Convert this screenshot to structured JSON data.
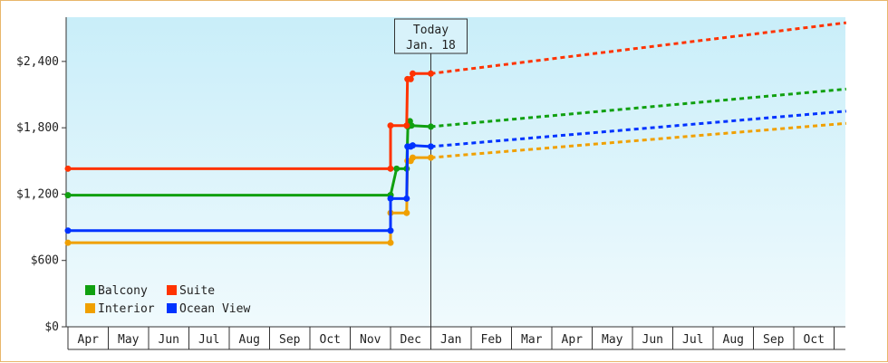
{
  "chart_data": {
    "type": "line",
    "y_ticks": [
      "$0",
      "$600",
      "$1,200",
      "$1,800",
      "$2,400"
    ],
    "ylim": [
      0,
      2800
    ],
    "x_ticks": [
      "Apr",
      "May",
      "Jun",
      "Jul",
      "Aug",
      "Sep",
      "Oct",
      "Nov",
      "Dec",
      "Jan",
      "Feb",
      "Mar",
      "Apr",
      "May",
      "Jun",
      "Jul",
      "Aug",
      "Sep",
      "Oct"
    ],
    "today_marker": {
      "line1": "Today",
      "line2": "Jan. 18"
    },
    "legend_position": "bottom-left",
    "series": [
      {
        "name": "Balcony",
        "color": "#10a010",
        "history": [
          [
            0,
            1190
          ],
          [
            8.0,
            1190
          ],
          [
            8.0,
            1190
          ],
          [
            8.15,
            1430
          ],
          [
            8.4,
            1430
          ],
          [
            8.43,
            1810
          ],
          [
            8.48,
            1860
          ],
          [
            8.52,
            1820
          ],
          [
            9.0,
            1810
          ]
        ],
        "forecast": [
          [
            9.0,
            1810
          ],
          [
            19.3,
            2150
          ]
        ]
      },
      {
        "name": "Suite",
        "color": "#ff3300",
        "history": [
          [
            0,
            1430
          ],
          [
            8.0,
            1430
          ],
          [
            8.0,
            1820
          ],
          [
            8.4,
            1820
          ],
          [
            8.42,
            2240
          ],
          [
            8.5,
            2240
          ],
          [
            8.55,
            2290
          ],
          [
            9.0,
            2290
          ]
        ],
        "forecast": [
          [
            9.0,
            2290
          ],
          [
            19.3,
            2750
          ]
        ]
      },
      {
        "name": "Interior",
        "color": "#f0a000",
        "history": [
          [
            0,
            760
          ],
          [
            8.0,
            760
          ],
          [
            8.0,
            1030
          ],
          [
            8.4,
            1030
          ],
          [
            8.42,
            1500
          ],
          [
            8.5,
            1500
          ],
          [
            8.55,
            1530
          ],
          [
            9.0,
            1530
          ]
        ],
        "forecast": [
          [
            9.0,
            1530
          ],
          [
            19.3,
            1840
          ]
        ]
      },
      {
        "name": "Ocean View",
        "color": "#0033ff",
        "history": [
          [
            0,
            870
          ],
          [
            8.0,
            870
          ],
          [
            8.0,
            1160
          ],
          [
            8.4,
            1160
          ],
          [
            8.42,
            1630
          ],
          [
            8.5,
            1630
          ],
          [
            8.55,
            1640
          ],
          [
            9.0,
            1630
          ]
        ],
        "forecast": [
          [
            9.0,
            1630
          ],
          [
            19.3,
            1950
          ]
        ]
      }
    ]
  }
}
